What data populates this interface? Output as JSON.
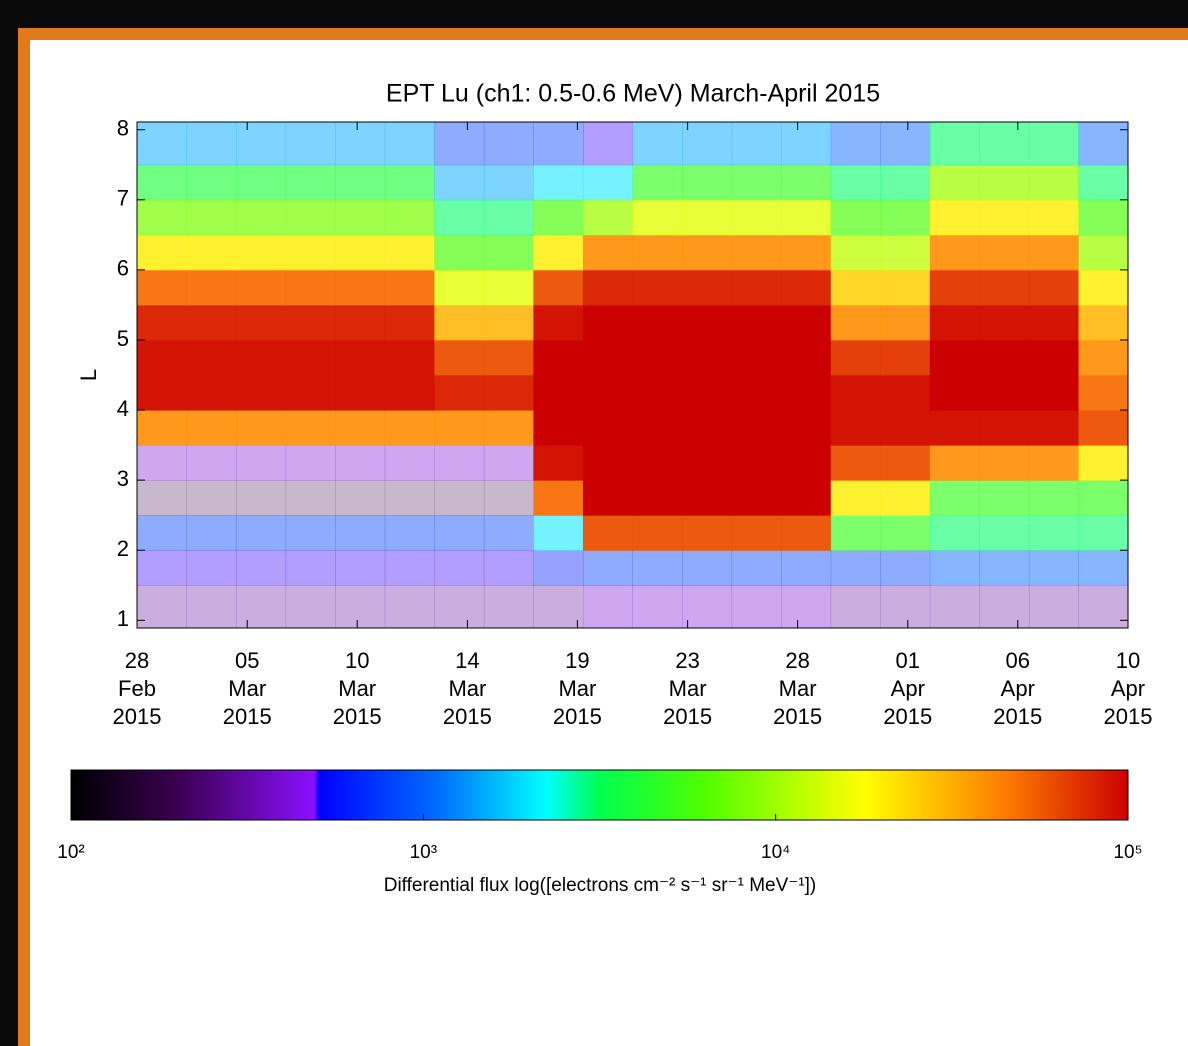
{
  "chart_data": {
    "type": "heatmap",
    "title": "EPT Lu (ch1: 0.5-0.6 MeV) March-April 2015",
    "y_label": "L",
    "colorbar_label": "Differential flux log([electrons cm⁻² s⁻¹ sr⁻¹ MeV⁻¹])",
    "xlim": [
      0,
      41
    ],
    "xticks": [
      {
        "value": 0,
        "label": [
          "28",
          "Feb",
          "2015"
        ]
      },
      {
        "value": 4.56,
        "label": [
          "05",
          "Mar",
          "2015"
        ]
      },
      {
        "value": 9.11,
        "label": [
          "10",
          "Mar",
          "2015"
        ]
      },
      {
        "value": 13.67,
        "label": [
          "14",
          "Mar",
          "2015"
        ]
      },
      {
        "value": 18.22,
        "label": [
          "19",
          "Mar",
          "2015"
        ]
      },
      {
        "value": 22.78,
        "label": [
          "23",
          "Mar",
          "2015"
        ]
      },
      {
        "value": 27.33,
        "label": [
          "28",
          "Mar",
          "2015"
        ]
      },
      {
        "value": 31.89,
        "label": [
          "01",
          "Apr",
          "2015"
        ]
      },
      {
        "value": 36.44,
        "label": [
          "06",
          "Apr",
          "2015"
        ]
      },
      {
        "value": 41,
        "label": [
          "10",
          "Apr",
          "2015"
        ]
      }
    ],
    "ylim": [
      0.89,
      8.11
    ],
    "yticks": [
      1,
      2,
      3,
      4,
      5,
      6,
      7,
      8
    ],
    "xbins": [
      0,
      2.05,
      4.1,
      6.15,
      8.2,
      10.25,
      12.3,
      14.35,
      16.4,
      18.45,
      20.5,
      22.55,
      24.6,
      26.65,
      28.7,
      30.75,
      32.8,
      34.85,
      36.9,
      38.95,
      41
    ],
    "ybins": [
      0.89,
      1.5,
      2,
      2.5,
      3,
      3.5,
      4,
      4.5,
      5,
      5.5,
      6,
      6.5,
      7,
      7.5,
      8.11
    ],
    "z": [
      [
        300,
        300,
        300,
        300,
        300,
        300,
        300,
        300,
        300,
        400,
        400,
        400,
        400,
        400,
        300,
        300,
        300,
        300,
        300,
        300
      ],
      [
        500,
        500,
        500,
        500,
        500,
        500,
        500,
        500,
        600,
        800,
        800,
        800,
        800,
        800,
        800,
        800,
        1000,
        1000,
        1000,
        1000
      ],
      [
        800,
        800,
        800,
        800,
        800,
        800,
        800,
        800,
        2000,
        60000,
        60000,
        60000,
        60000,
        60000,
        5000,
        5000,
        3000,
        3000,
        3000,
        3000
      ],
      [
        200,
        200,
        200,
        200,
        200,
        200,
        200,
        200,
        50000,
        100000,
        100000,
        100000,
        100000,
        100000,
        20000,
        20000,
        5000,
        5000,
        5000,
        5000
      ],
      [
        400,
        400,
        400,
        400,
        400,
        400,
        400,
        400,
        90000,
        100000,
        100000,
        100000,
        100000,
        100000,
        60000,
        60000,
        40000,
        40000,
        40000,
        20000
      ],
      [
        40000,
        40000,
        40000,
        40000,
        40000,
        40000,
        40000,
        40000,
        100000,
        100000,
        100000,
        100000,
        100000,
        100000,
        90000,
        90000,
        90000,
        90000,
        90000,
        60000
      ],
      [
        90000,
        90000,
        90000,
        90000,
        90000,
        90000,
        80000,
        80000,
        100000,
        100000,
        100000,
        100000,
        100000,
        100000,
        90000,
        90000,
        100000,
        100000,
        100000,
        50000
      ],
      [
        90000,
        90000,
        90000,
        90000,
        90000,
        90000,
        60000,
        60000,
        100000,
        100000,
        100000,
        100000,
        100000,
        100000,
        70000,
        70000,
        100000,
        100000,
        100000,
        40000
      ],
      [
        80000,
        80000,
        80000,
        80000,
        80000,
        80000,
        30000,
        30000,
        90000,
        100000,
        100000,
        100000,
        100000,
        100000,
        40000,
        40000,
        90000,
        90000,
        90000,
        30000
      ],
      [
        50000,
        50000,
        50000,
        50000,
        50000,
        50000,
        15000,
        15000,
        60000,
        80000,
        80000,
        80000,
        80000,
        80000,
        25000,
        25000,
        70000,
        70000,
        70000,
        20000
      ],
      [
        20000,
        20000,
        20000,
        20000,
        20000,
        20000,
        6000,
        6000,
        20000,
        40000,
        40000,
        40000,
        40000,
        40000,
        12000,
        12000,
        40000,
        40000,
        40000,
        10000
      ],
      [
        8000,
        8000,
        8000,
        8000,
        8000,
        8000,
        3000,
        3000,
        6000,
        10000,
        15000,
        15000,
        15000,
        15000,
        6000,
        6000,
        20000,
        20000,
        20000,
        6000
      ],
      [
        4000,
        4000,
        4000,
        4000,
        4000,
        4000,
        1500,
        1500,
        2000,
        2000,
        5000,
        5000,
        5000,
        5000,
        3000,
        3000,
        10000,
        10000,
        10000,
        3000
      ],
      [
        1500,
        1500,
        1500,
        1500,
        1500,
        1500,
        800,
        800,
        800,
        500,
        1500,
        1500,
        1500,
        1500,
        1000,
        1000,
        3000,
        3000,
        3000,
        1000
      ]
    ],
    "clim": [
      100,
      100000
    ],
    "colorbar_log": true,
    "cticks": [
      {
        "value": 100,
        "label": "10²"
      },
      {
        "value": 1000,
        "label": "10³"
      },
      {
        "value": 10000,
        "label": "10⁴"
      },
      {
        "value": 100000,
        "label": "10⁵"
      }
    ],
    "colorscale": [
      {
        "stop": 0,
        "color": "#000000"
      },
      {
        "stop": 0.1,
        "color": "#3a0050"
      },
      {
        "stop": 0.23,
        "color": "#8a10ff"
      },
      {
        "stop": 0.235,
        "color": "#0000ff"
      },
      {
        "stop": 0.35,
        "color": "#0070ff"
      },
      {
        "stop": 0.45,
        "color": "#00ffff"
      },
      {
        "stop": 0.5,
        "color": "#00ff50"
      },
      {
        "stop": 0.6,
        "color": "#50ff00"
      },
      {
        "stop": 0.75,
        "color": "#ffff00"
      },
      {
        "stop": 0.88,
        "color": "#ff8000"
      },
      {
        "stop": 1,
        "color": "#cc0000"
      }
    ]
  }
}
